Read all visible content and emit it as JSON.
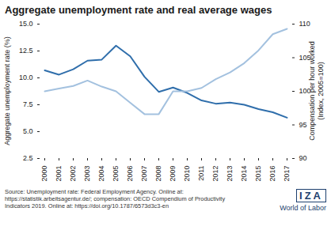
{
  "chart_data": {
    "type": "line",
    "title": "Aggregate unemployment rate and real average wages",
    "source": "Source: Unemployment rate: Federal Employment Agency. Online at: https://statistik.arbeitsagentur.de/; compensation: OECD Compendium of Productivity Indicators 2019. Online at: https://doi.org/10.1787/6573d3c3-en",
    "annotations": [
      "IZA",
      "World of Labor"
    ],
    "x": [
      2000,
      2001,
      2002,
      2003,
      2004,
      2005,
      2006,
      2007,
      2008,
      2009,
      2010,
      2011,
      2012,
      2013,
      2014,
      2015,
      2016,
      2017
    ],
    "xlim": [
      2000,
      2017
    ],
    "xticks": [
      2000,
      2001,
      2002,
      2003,
      2004,
      2005,
      2006,
      2007,
      2008,
      2009,
      2010,
      2011,
      2012,
      2013,
      2014,
      2015,
      2016,
      2017
    ],
    "ylim": [
      2.5,
      15
    ],
    "yticks": [
      2.5,
      {
        "value": 5,
        "label": "5.0"
      },
      7.5,
      {
        "value": 10,
        "label": "10.0"
      },
      12.5,
      {
        "value": 15,
        "label": "15.0"
      }
    ],
    "y2lim": [
      90,
      110
    ],
    "y2ticks": [
      90,
      95,
      100,
      105,
      110
    ],
    "grid": false,
    "series": [
      {
        "name": "Aggregate unemployment rate (%)",
        "color": "#2f6eab",
        "values": [
          10.7,
          10.3,
          10.8,
          11.6,
          11.7,
          13.0,
          12.0,
          10.1,
          8.7,
          9.1,
          8.6,
          7.9,
          7.6,
          7.7,
          7.5,
          7.1,
          6.8,
          6.3
        ]
      },
      {
        "name": "Compensation per hour worked (Index, 2005=100)",
        "color": "#a3c1df",
        "axis": "y2",
        "values": [
          100.0,
          100.4,
          100.8,
          101.6,
          100.7,
          100.0,
          98.3,
          96.6,
          96.6,
          100.0,
          100.0,
          100.5,
          101.8,
          102.8,
          104.2,
          106.1,
          108.5,
          109.3
        ]
      }
    ]
  }
}
